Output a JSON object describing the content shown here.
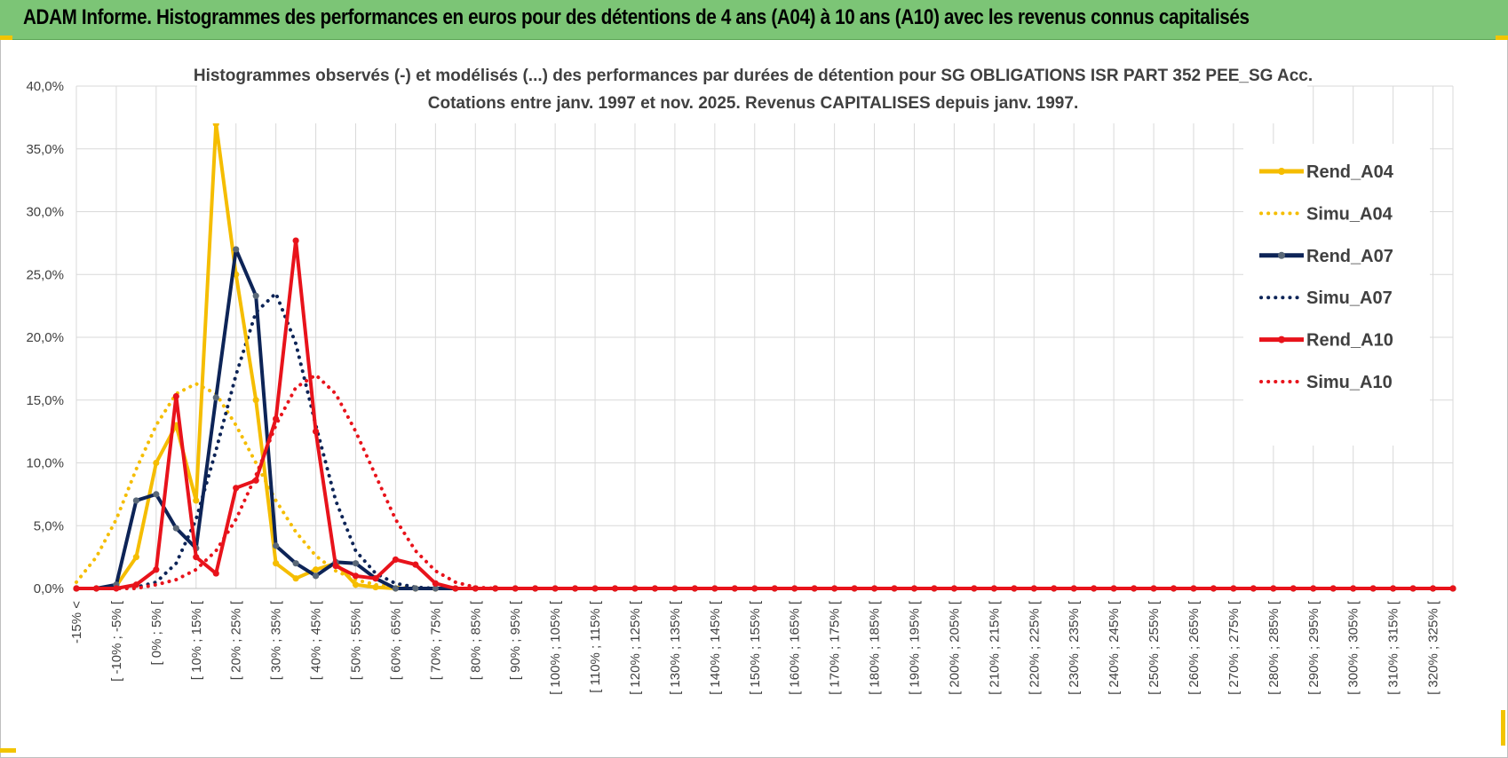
{
  "header": {
    "title": "ADAM Informe. Histogrammes des performances en euros pour des détentions de 4 ans (A04) à 10 ans (A10) avec les revenus connus capitalisés"
  },
  "colors": {
    "header_bg": "#7cc576",
    "yellow": "#f5bd00",
    "navy": "#0d2457",
    "red": "#e8131b",
    "grid": "#d9d9d9"
  },
  "chart_data": {
    "type": "line",
    "title": "Histogrammes observés (-) et modélisés (...)  des performances par durées de détention pour SG OBLIGATIONS ISR PART 352 PEE_SG Acc.",
    "subtitle": "Cotations entre janv. 1997 et nov. 2025. Revenus CAPITALISES depuis janv. 1997.",
    "xlabel": "",
    "ylabel": "",
    "ylim": [
      0,
      40
    ],
    "y_ticks": [
      "0,0%",
      "5,0%",
      "10,0%",
      "15,0%",
      "20,0%",
      "25,0%",
      "30,0%",
      "35,0%",
      "40,0%"
    ],
    "x_labels": [
      "-15% <",
      "[ -10% ; -5% [",
      "[ 0% ; 5% [",
      "[ 10% ; 15% [",
      "[ 20% ; 25% [",
      "[ 30% ; 35% [",
      "[ 40% ; 45% [",
      "[ 50% ; 55% [",
      "[ 60% ; 65% [",
      "[ 70% ; 75% [",
      "[ 80% ; 85% [",
      "[ 90% ; 95% [",
      "[ 100% ; 105% [",
      "[ 110% ; 115% [",
      "[ 120% ; 125% [",
      "[ 130% ; 135% [",
      "[ 140% ; 145% [",
      "[ 150% ; 155% [",
      "[ 160% ; 165% [",
      "[ 170% ; 175% [",
      "[ 180% ; 185% [",
      "[ 190% ; 195% [",
      "[ 200% ; 205% [",
      "[ 210% ; 215% [",
      "[ 220% ; 225% [",
      "[ 230% ; 235% [",
      "[ 240% ; 245% [",
      "[ 250% ; 255% [",
      "[ 260% ; 265% [",
      "[ 270% ; 275% [",
      "[ 280% ; 285% [",
      "[ 290% ; 295% [",
      "[ 300% ; 305% [",
      "[ 310% ; 315% [",
      "[ 320% ; 325% ["
    ],
    "bins_count": 70,
    "grid": true,
    "legend_position": "right",
    "series": [
      {
        "name": "Rend_A04",
        "style": "solid",
        "color": "#f5bd00",
        "values": [
          0,
          0,
          0.2,
          2.5,
          10,
          13,
          7,
          37,
          25,
          15,
          2,
          0.8,
          1.5,
          2,
          0.3,
          0.1,
          0,
          0,
          0,
          0,
          0,
          0,
          0,
          0,
          0,
          0,
          0,
          0,
          0,
          0,
          0,
          0,
          0,
          0,
          0,
          0,
          0,
          0,
          0,
          0,
          0,
          0,
          0,
          0,
          0,
          0,
          0,
          0,
          0,
          0,
          0,
          0,
          0,
          0,
          0,
          0,
          0,
          0,
          0,
          0,
          0,
          0,
          0,
          0,
          0,
          0,
          0,
          0,
          0,
          0
        ]
      },
      {
        "name": "Simu_A04",
        "style": "dotted",
        "color": "#f5bd00",
        "values": [
          0.5,
          2.5,
          5.5,
          9.5,
          13,
          15.5,
          16.3,
          15.5,
          13,
          10,
          7,
          4.5,
          2.6,
          1.4,
          0.7,
          0.3,
          0.1,
          0,
          0,
          0,
          0,
          0,
          0,
          0,
          0,
          0,
          0,
          0,
          0,
          0,
          0,
          0,
          0,
          0,
          0,
          0,
          0,
          0,
          0,
          0,
          0,
          0,
          0,
          0,
          0,
          0,
          0,
          0,
          0,
          0,
          0,
          0,
          0,
          0,
          0,
          0,
          0,
          0,
          0,
          0,
          0,
          0,
          0,
          0,
          0,
          0,
          0,
          0,
          0,
          0
        ]
      },
      {
        "name": "Rend_A07",
        "style": "solid",
        "color": "#0d2457",
        "values": [
          0,
          0,
          0.3,
          7,
          7.5,
          4.8,
          3.2,
          15.2,
          27,
          23.3,
          3.4,
          2,
          1,
          2.1,
          2,
          0.8,
          0,
          0,
          0,
          0,
          0,
          0,
          0,
          0,
          0,
          0,
          0,
          0,
          0,
          0,
          0,
          0,
          0,
          0,
          0,
          0,
          0,
          0,
          0,
          0,
          0,
          0,
          0,
          0,
          0,
          0,
          0,
          0,
          0,
          0,
          0,
          0,
          0,
          0,
          0,
          0,
          0,
          0,
          0,
          0,
          0,
          0,
          0,
          0,
          0,
          0,
          0,
          0,
          0,
          0
        ]
      },
      {
        "name": "Simu_A07",
        "style": "dotted",
        "color": "#0d2457",
        "values": [
          0,
          0,
          0,
          0.1,
          0.5,
          2,
          5.5,
          11,
          17,
          22,
          23.5,
          19.5,
          13,
          7,
          3,
          1.2,
          0.4,
          0.1,
          0,
          0,
          0,
          0,
          0,
          0,
          0,
          0,
          0,
          0,
          0,
          0,
          0,
          0,
          0,
          0,
          0,
          0,
          0,
          0,
          0,
          0,
          0,
          0,
          0,
          0,
          0,
          0,
          0,
          0,
          0,
          0,
          0,
          0,
          0,
          0,
          0,
          0,
          0,
          0,
          0,
          0,
          0,
          0,
          0,
          0,
          0,
          0,
          0,
          0,
          0,
          0
        ]
      },
      {
        "name": "Rend_A10",
        "style": "solid",
        "color": "#e8131b",
        "values": [
          0,
          0,
          0,
          0.3,
          1.5,
          15.3,
          2.5,
          1.2,
          8,
          8.6,
          13.5,
          27.7,
          12.5,
          1.8,
          1,
          0.8,
          2.3,
          1.9,
          0.4,
          0,
          0,
          0,
          0,
          0,
          0,
          0,
          0,
          0,
          0,
          0,
          0,
          0,
          0,
          0,
          0,
          0,
          0,
          0,
          0,
          0,
          0,
          0,
          0,
          0,
          0,
          0,
          0,
          0,
          0,
          0,
          0,
          0,
          0,
          0,
          0,
          0,
          0,
          0,
          0,
          0,
          0,
          0,
          0,
          0,
          0,
          0,
          0,
          0,
          0,
          0
        ]
      },
      {
        "name": "Simu_A10",
        "style": "dotted",
        "color": "#e8131b",
        "values": [
          0,
          0,
          0,
          0,
          0.3,
          0.7,
          1.5,
          3,
          5.5,
          9,
          13,
          16,
          17,
          15.5,
          12.5,
          9,
          5.5,
          3,
          1.4,
          0.5,
          0.1,
          0,
          0,
          0,
          0,
          0,
          0,
          0,
          0,
          0,
          0,
          0,
          0,
          0,
          0,
          0,
          0,
          0,
          0,
          0,
          0,
          0,
          0,
          0,
          0,
          0,
          0,
          0,
          0,
          0,
          0,
          0,
          0,
          0,
          0,
          0,
          0,
          0,
          0,
          0,
          0,
          0,
          0,
          0,
          0,
          0,
          0,
          0,
          0,
          0
        ]
      }
    ]
  }
}
